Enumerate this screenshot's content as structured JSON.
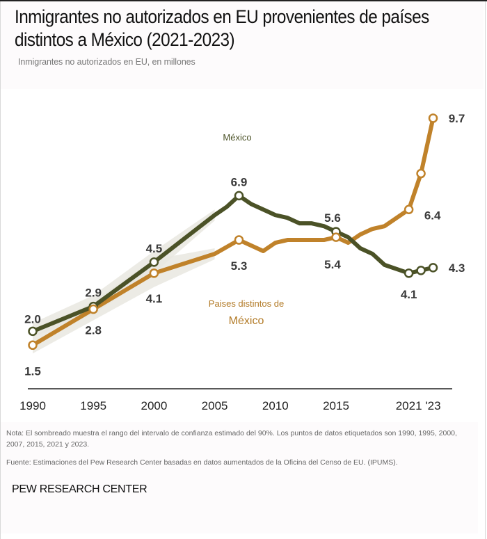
{
  "header": {
    "title": "Inmigrantes no autorizados en EU provenientes de países distintos a México (2021-2023)",
    "subtitle": "Inmigrantes no autorizados en EU, en millones"
  },
  "footer": {
    "note": "Nota: El sombreado muestra el rango del intervalo de confianza estimado del 90%. Los puntos de datos etiquetados son 1990, 1995, 2000, 2007, 2015, 2021 y 2023.",
    "source": "Fuente: Estimaciones del Pew Research Center basadas en datos aumentados de la Oficina del Censo de EU. (IPUMS).",
    "brand": "PEW RESEARCH CENTER"
  },
  "colors": {
    "mexico": "#4b5227",
    "other": "#c0822a",
    "ci_band": "#e9e7e0",
    "label": "#3a3a3a"
  },
  "chart_data": {
    "type": "line",
    "title": "Inmigrantes no autorizados en EU provenientes de países distintos a México (2021-2023)",
    "ylabel": "Inmigrantes no autorizados en EU, en millones",
    "xlabel": "",
    "xlim": [
      1990,
      2023
    ],
    "ylim": [
      0,
      10
    ],
    "grid": false,
    "x_ticks": [
      {
        "value": 1990,
        "label": "1990"
      },
      {
        "value": 1995,
        "label": "1995"
      },
      {
        "value": 2000,
        "label": "2000"
      },
      {
        "value": 2005,
        "label": "2005"
      },
      {
        "value": 2010,
        "label": "2010"
      },
      {
        "value": 2015,
        "label": "2015"
      },
      {
        "value": 2021,
        "label": "2021"
      },
      {
        "value": 2023,
        "label": "'23"
      }
    ],
    "series": [
      {
        "name": "México",
        "legend_lines": [
          "México"
        ],
        "x": [
          1990,
          1995,
          2000,
          2005,
          2006,
          2007,
          2008,
          2009,
          2010,
          2011,
          2012,
          2013,
          2014,
          2015,
          2016,
          2017,
          2018,
          2019,
          2021,
          2022,
          2023
        ],
        "values": [
          2.0,
          2.9,
          4.5,
          6.2,
          6.5,
          6.9,
          6.6,
          6.4,
          6.2,
          6.1,
          5.9,
          5.9,
          5.8,
          5.6,
          5.4,
          5.0,
          4.8,
          4.4,
          4.1,
          4.2,
          4.3
        ],
        "labeled_points": [
          {
            "x": 1990,
            "value": 2.0,
            "label": "2.0"
          },
          {
            "x": 1995,
            "value": 2.9,
            "label": "2.9"
          },
          {
            "x": 2000,
            "value": 4.5,
            "label": "4.5"
          },
          {
            "x": 2007,
            "value": 6.9,
            "label": "6.9"
          },
          {
            "x": 2015,
            "value": 5.6,
            "label": "5.6"
          },
          {
            "x": 2021,
            "value": 4.1,
            "label": "4.1"
          },
          {
            "x": 2022,
            "value": 4.2,
            "label": ""
          },
          {
            "x": 2023,
            "value": 4.3,
            "label": "4.3"
          }
        ],
        "ci": {
          "x": [
            1990,
            1995,
            2000,
            2005
          ],
          "low": [
            1.8,
            2.6,
            4.1,
            6.0
          ],
          "high": [
            2.3,
            3.3,
            4.9,
            6.4
          ]
        }
      },
      {
        "name": "Paises distintos de México",
        "legend_lines": [
          "Paises distintos de",
          "México"
        ],
        "x": [
          1990,
          1995,
          2000,
          2005,
          2007,
          2008,
          2009,
          2010,
          2011,
          2012,
          2013,
          2014,
          2015,
          2016,
          2017,
          2018,
          2019,
          2021,
          2022,
          2023
        ],
        "values": [
          1.5,
          2.8,
          4.1,
          4.8,
          5.3,
          5.1,
          4.9,
          5.2,
          5.3,
          5.3,
          5.3,
          5.3,
          5.4,
          5.2,
          5.5,
          5.7,
          5.8,
          6.4,
          7.7,
          9.7
        ],
        "labeled_points": [
          {
            "x": 1990,
            "value": 1.5,
            "label": "1.5"
          },
          {
            "x": 1995,
            "value": 2.8,
            "label": "2.8"
          },
          {
            "x": 2000,
            "value": 4.1,
            "label": "4.1"
          },
          {
            "x": 2007,
            "value": 5.3,
            "label": "5.3"
          },
          {
            "x": 2015,
            "value": 5.4,
            "label": "5.4"
          },
          {
            "x": 2021,
            "value": 6.4,
            "label": "6.4"
          },
          {
            "x": 2022,
            "value": 7.7,
            "label": ""
          },
          {
            "x": 2023,
            "value": 9.7,
            "label": "9.7"
          }
        ],
        "ci": {
          "x": [
            1990,
            1995,
            2000,
            2005
          ],
          "low": [
            1.2,
            2.4,
            3.6,
            4.6
          ],
          "high": [
            1.8,
            3.1,
            4.6,
            5.0
          ]
        }
      }
    ]
  }
}
